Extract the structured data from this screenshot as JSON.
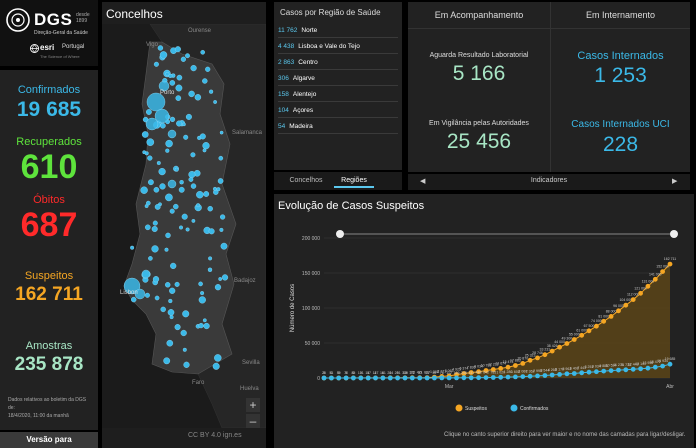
{
  "logo": {
    "title": "DGS",
    "since_line1": "desde",
    "since_line2": "1899",
    "subtitle": "Direção-Geral da Saúde",
    "esri": "esri",
    "esri_country": "Portugal",
    "esri_sub": "The Science of Where"
  },
  "stats": [
    {
      "label": "Confirmados",
      "value": "19 685",
      "color": "#3bb9e8"
    },
    {
      "label": "Recuperados",
      "value": "610",
      "color": "#5ee33c"
    },
    {
      "label": "Óbitos",
      "value": "687",
      "color": "#ff2a2a"
    },
    {
      "label": "Suspeitos",
      "value": "162 711",
      "color": "#f5a623"
    },
    {
      "label": "Amostras",
      "value": "235 878",
      "color": "#a8e6c5"
    }
  ],
  "footnote": "Dados relativos ao boletim da DGS de:\n18/4/2020, 11:00 da manhã",
  "version_button": "Versão para",
  "map": {
    "title": "Concelhos",
    "labels": [
      "Vigo",
      "Ourense",
      "Porto",
      "Salamanca",
      "Lisbon",
      "Badajoz",
      "Sevilla",
      "Huelva",
      "Faro"
    ],
    "attribution": "CC BY 4.0 ign.es",
    "zoom_in": "+",
    "zoom_out": "–",
    "menu": "⋯"
  },
  "regions": {
    "title": "Casos por Região de Saúde",
    "items": [
      {
        "num": "11 762",
        "name": "Norte"
      },
      {
        "num": "4 438",
        "name": "Lisboa e Vale do Tejo"
      },
      {
        "num": "2 863",
        "name": "Centro"
      },
      {
        "num": "306",
        "name": "Algarve"
      },
      {
        "num": "158",
        "name": "Alentejo"
      },
      {
        "num": "104",
        "name": "Açores"
      },
      {
        "num": "54",
        "name": "Madeira"
      }
    ],
    "tabs": [
      "Concelhos",
      "Regiões"
    ],
    "active_tab": 1
  },
  "indicators": {
    "col1_title": "Em Acompanhamento",
    "col2_title": "Em Internamento",
    "items": [
      {
        "label": "Aguarda Resultado Laboratorial",
        "value": "5 166",
        "color": "#a8e6c5"
      },
      {
        "label": "Casos Internados",
        "value": "1 253",
        "color": "#3bb9e8"
      },
      {
        "label": "Em Vigilância pelas Autoridades",
        "value": "25 456",
        "color": "#a8e6c5"
      },
      {
        "label": "Casos Internados UCI",
        "value": "228",
        "color": "#3bb9e8"
      }
    ],
    "footer": "Indicadores",
    "prev": "◀",
    "next": "▶"
  },
  "chart_panel": {
    "title": "Evolução de Casos Suspeitos",
    "note": "Clique no canto superior direito para ver maior e no nome das camadas para ligar/desligar."
  },
  "chart_data": {
    "type": "area",
    "ylabel": "Número de Casos",
    "ylim": [
      0,
      200000
    ],
    "yticks": [
      "0",
      "50 000",
      "100 000",
      "150 000",
      "200 000"
    ],
    "xtick_labels": [
      "Mar",
      "Abr"
    ],
    "x_count": 48,
    "series": [
      {
        "name": "Suspeitos",
        "color": "#f5a623",
        "values": [
          25,
          51,
          59,
          70,
          85,
          101,
          117,
          147,
          181,
          224,
          281,
          339,
          375,
          471,
          637,
          1308,
          2271,
          3063,
          4923,
          6374,
          7836,
          9034,
          10781,
          12211,
          13674,
          15473,
          17883,
          20870,
          25323,
          28746,
          33231,
          38426,
          44000,
          49300,
          55000,
          61000,
          67500,
          74000,
          81000,
          88000,
          96000,
          104000,
          112000,
          121000,
          131000,
          141000,
          152000,
          162711
        ]
      },
      {
        "name": "Confirmados",
        "color": "#3bb9e8",
        "values": [
          0,
          0,
          0,
          0,
          0,
          0,
          0,
          2,
          4,
          6,
          9,
          13,
          21,
          30,
          41,
          59,
          78,
          112,
          169,
          245,
          331,
          448,
          642,
          785,
          1020,
          1280,
          1600,
          2060,
          2362,
          2995,
          3544,
          4268,
          5170,
          5962,
          6408,
          7443,
          8251,
          9034,
          9886,
          10524,
          11278,
          11730,
          12442,
          13141,
          13956,
          15472,
          16934,
          19685
        ]
      }
    ],
    "legend_position": "bottom"
  }
}
